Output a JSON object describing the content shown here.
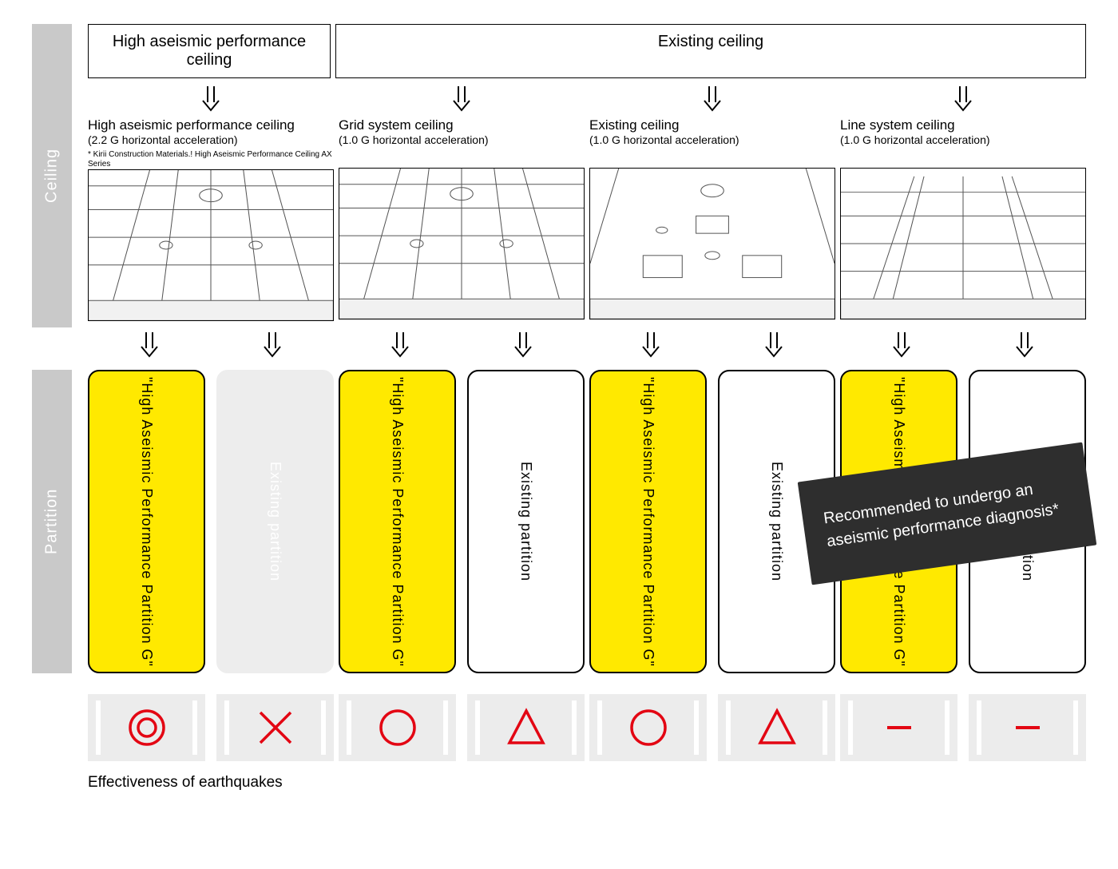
{
  "rows": {
    "ceiling_label": "Ceiling",
    "partition_label": "Partition"
  },
  "headers": {
    "left": "High aseismic performance ceiling",
    "right": "Existing ceiling"
  },
  "ceilings": [
    {
      "title": "High aseismic performance ceiling",
      "sub": "(2.2 G horizontal acceleration)",
      "note": "* Kirii Construction Materials.! High Aseismic Performance Ceiling AX Series"
    },
    {
      "title": "Grid system ceiling",
      "sub": "(1.0 G horizontal acceleration)",
      "note": ""
    },
    {
      "title": "Existing ceiling",
      "sub": "(1.0 G horizontal acceleration)",
      "note": ""
    },
    {
      "title": "Line system ceiling",
      "sub": "(1.0 G horizontal acceleration)",
      "note": ""
    }
  ],
  "partitions": {
    "hi_label": "\"High Aseismic Performance Partition G\"",
    "ex_label": "Existing partition",
    "columns": [
      {
        "left": "hi",
        "right": "ghost"
      },
      {
        "left": "hi",
        "right": "ex"
      },
      {
        "left": "hi",
        "right": "ex"
      },
      {
        "left": "hi",
        "right": "ex"
      }
    ],
    "recommendation": "Recommended to undergo an aseismic performance diagnosis*"
  },
  "ratings": {
    "symbols": [
      [
        "double_circle",
        "cross"
      ],
      [
        "circle",
        "triangle"
      ],
      [
        "circle",
        "triangle"
      ],
      [
        "dash",
        "dash"
      ]
    ],
    "caption": "Effectiveness of earthquakes",
    "colors": {
      "symbol": "#e30613",
      "cell_bg": "#ececec"
    }
  },
  "style": {
    "highlight_bg": "#ffe900",
    "ghost_bg": "#ededed",
    "overlay_bg": "#2e2e2e",
    "row_label_bg": "#c9c9c9",
    "stroke": "#000000"
  }
}
